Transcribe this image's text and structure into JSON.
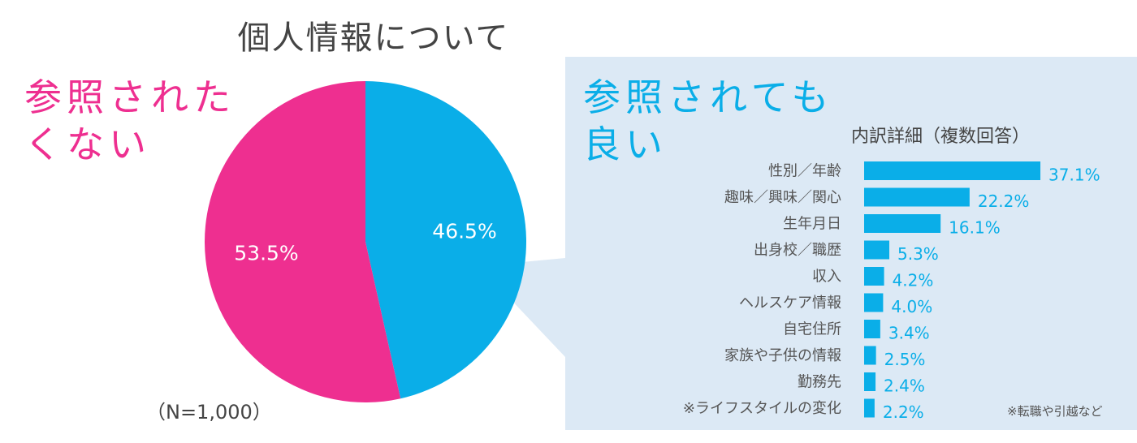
{
  "title": "個人情報について",
  "left_label_lines": [
    "参照された",
    "くない"
  ],
  "right_label_lines": [
    "参照されても",
    "良い"
  ],
  "breakdown_title": "内訳詳細（複数回答）",
  "n_label": "（N=1,000）",
  "note": "※転職や引越など",
  "colors": {
    "pink": "#ee2f90",
    "blue": "#0aaee8",
    "panel": "#dce9f5"
  },
  "chart_data": [
    {
      "type": "pie",
      "title": "個人情報について",
      "slices": [
        {
          "label": "参照されても良い",
          "value": 46.5,
          "display": "46.5%",
          "color": "#0aaee8"
        },
        {
          "label": "参照されたくない",
          "value": 53.5,
          "display": "53.5%",
          "color": "#ee2f90"
        }
      ]
    },
    {
      "type": "bar",
      "orientation": "horizontal",
      "title": "内訳詳細（複数回答）",
      "categories": [
        "性別／年齢",
        "趣味／興味／関心",
        "生年月日",
        "出身校／職歴",
        "収入",
        "ヘルスケア情報",
        "自宅住所",
        "家族や子供の情報",
        "勤務先",
        "※ライフスタイルの変化"
      ],
      "values": [
        37.1,
        22.2,
        16.1,
        5.3,
        4.2,
        4.0,
        3.4,
        2.5,
        2.4,
        2.2
      ],
      "labels": [
        "37.1%",
        "22.2%",
        "16.1%",
        "5.3%",
        "4.2%",
        "4.0%",
        "3.4%",
        "2.5%",
        "2.4%",
        "2.2%"
      ],
      "unit": "%"
    }
  ]
}
